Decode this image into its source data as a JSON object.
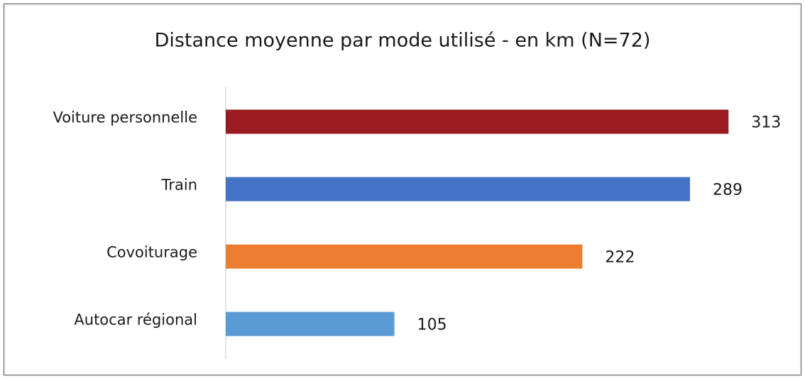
{
  "chart_data": {
    "type": "bar",
    "orientation": "horizontal",
    "title": "Distance moyenne par mode utilisé - en km (N=72)",
    "categories": [
      "Voiture personnelle",
      "Train",
      "Covoiturage",
      "Autocar régional"
    ],
    "values": [
      313,
      289,
      222,
      105
    ],
    "colors": [
      "#9b1b22",
      "#4472c4",
      "#ed7d31",
      "#5b9bd5"
    ],
    "xlim": [
      0,
      350
    ]
  }
}
